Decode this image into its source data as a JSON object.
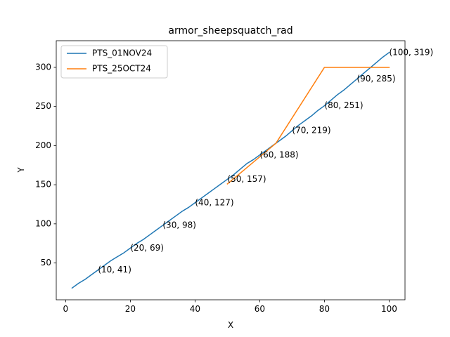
{
  "chart_data": {
    "type": "line",
    "title": "armor_sheepsquatch_rad",
    "xlabel": "X",
    "ylabel": "Y",
    "xlim": [
      -2.9,
      104.9
    ],
    "ylim": [
      2.95,
      334.05
    ],
    "xticks": [
      0,
      20,
      40,
      60,
      80,
      100
    ],
    "yticks": [
      50,
      100,
      150,
      200,
      250,
      300
    ],
    "legend_position": "upper left",
    "grid": false,
    "series": [
      {
        "name": "PTS_01NOV24",
        "color": "#1f77b4",
        "x": [
          2,
          4,
          6,
          8,
          10,
          12,
          14,
          16,
          18,
          20,
          22,
          24,
          26,
          28,
          30,
          32,
          34,
          36,
          38,
          40,
          42,
          44,
          46,
          48,
          50,
          52,
          54,
          56,
          58,
          60,
          62,
          64,
          66,
          68,
          70,
          72,
          74,
          76,
          78,
          80,
          82,
          84,
          86,
          88,
          90,
          92,
          94,
          96,
          98,
          100
        ],
        "y": [
          18,
          24,
          29,
          35,
          41,
          47,
          53,
          58,
          63,
          69,
          75,
          80,
          86,
          92,
          98,
          104,
          110,
          116,
          121,
          127,
          133,
          139,
          145,
          151,
          157,
          163,
          170,
          177,
          182,
          188,
          194,
          200,
          206,
          212,
          219,
          226,
          232,
          238,
          245,
          251,
          258,
          265,
          271,
          278,
          285,
          292,
          299,
          306,
          313,
          319
        ]
      },
      {
        "name": "PTS_25OCT24",
        "color": "#ff7f0e",
        "x": [
          50,
          65,
          80,
          100
        ],
        "y": [
          151,
          203,
          300,
          300
        ]
      }
    ],
    "annotations": [
      {
        "x": 10,
        "y": 41,
        "text": "(10, 41)"
      },
      {
        "x": 20,
        "y": 69,
        "text": "(20, 69)"
      },
      {
        "x": 30,
        "y": 98,
        "text": "(30, 98)"
      },
      {
        "x": 40,
        "y": 127,
        "text": "(40, 127)"
      },
      {
        "x": 50,
        "y": 157,
        "text": "(50, 157)"
      },
      {
        "x": 60,
        "y": 188,
        "text": "(60, 188)"
      },
      {
        "x": 70,
        "y": 219,
        "text": "(70, 219)"
      },
      {
        "x": 80,
        "y": 251,
        "text": "(80, 251)"
      },
      {
        "x": 90,
        "y": 285,
        "text": "(90, 285)"
      },
      {
        "x": 100,
        "y": 319,
        "text": "(100, 319)"
      }
    ]
  }
}
